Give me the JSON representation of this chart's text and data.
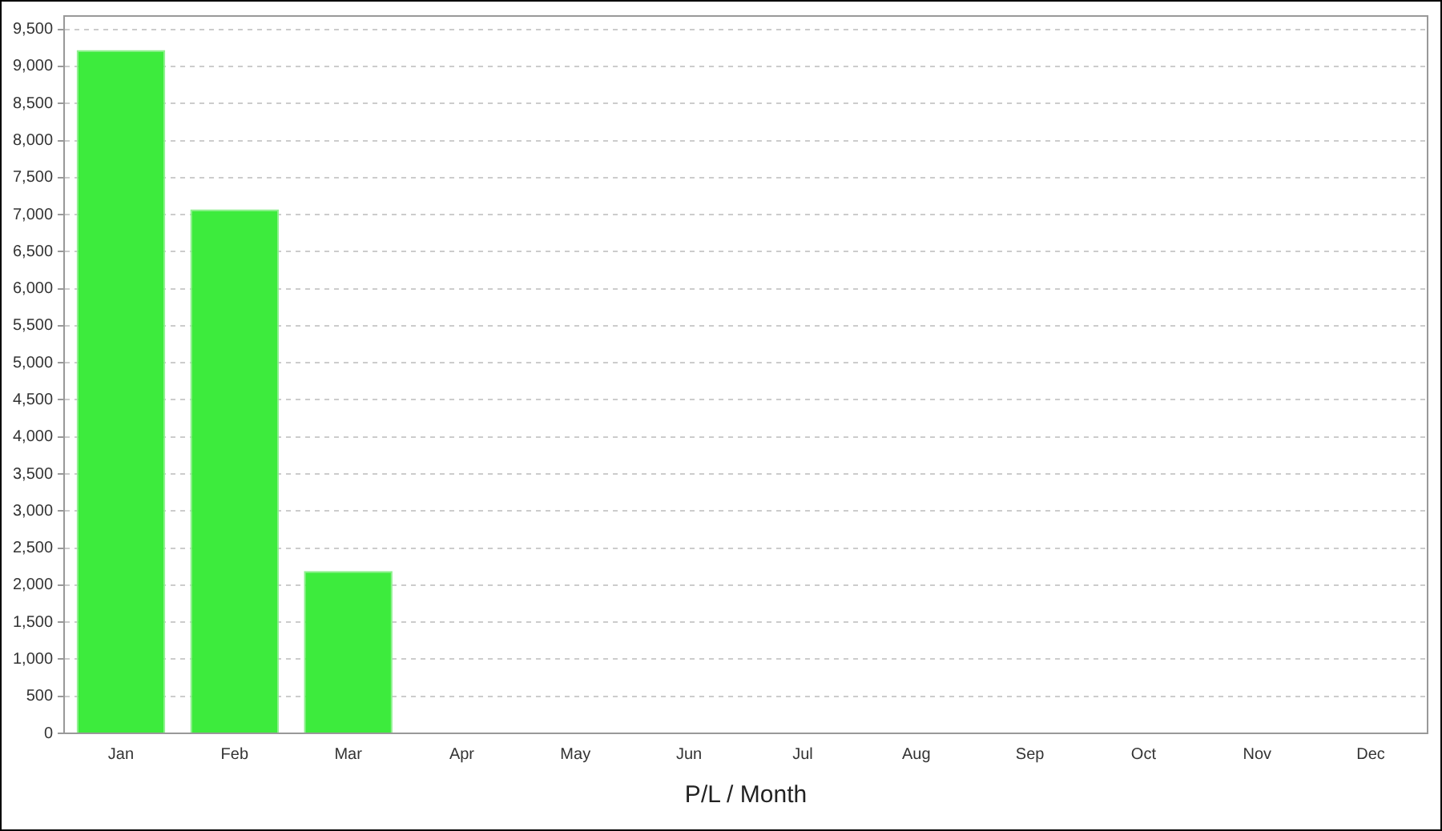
{
  "chart_data": {
    "type": "bar",
    "xlabel": "P/L / Month",
    "categories": [
      "Jan",
      "Feb",
      "Mar",
      "Apr",
      "May",
      "Jun",
      "Jul",
      "Aug",
      "Sep",
      "Oct",
      "Nov",
      "Dec"
    ],
    "values": [
      9220,
      7070,
      2190,
      null,
      null,
      null,
      null,
      null,
      null,
      null,
      null,
      null
    ],
    "color": "#3deb3d",
    "ylim": [
      0,
      9680
    ],
    "yticks": [
      0,
      500,
      {
        "value": 1000,
        "label": "1,000"
      },
      {
        "value": 1500,
        "label": "1,500"
      },
      {
        "value": 2000,
        "label": "2,000"
      },
      {
        "value": 2500,
        "label": "2,500"
      },
      {
        "value": 3000,
        "label": "3,000"
      },
      {
        "value": 3500,
        "label": "3,500"
      },
      {
        "value": 4000,
        "label": "4,000"
      },
      {
        "value": 4500,
        "label": "4,500"
      },
      {
        "value": 5000,
        "label": "5,000"
      },
      {
        "value": 5500,
        "label": "5,500"
      },
      {
        "value": 6000,
        "label": "6,000"
      },
      {
        "value": 6500,
        "label": "6,500"
      },
      {
        "value": 7000,
        "label": "7,000"
      },
      {
        "value": 7500,
        "label": "7,500"
      },
      {
        "value": 8000,
        "label": "8,000"
      },
      {
        "value": 8500,
        "label": "8,500"
      },
      {
        "value": 9000,
        "label": "9,000"
      },
      {
        "value": 9500,
        "label": "9,500"
      }
    ],
    "grid": "y",
    "legend": false
  }
}
